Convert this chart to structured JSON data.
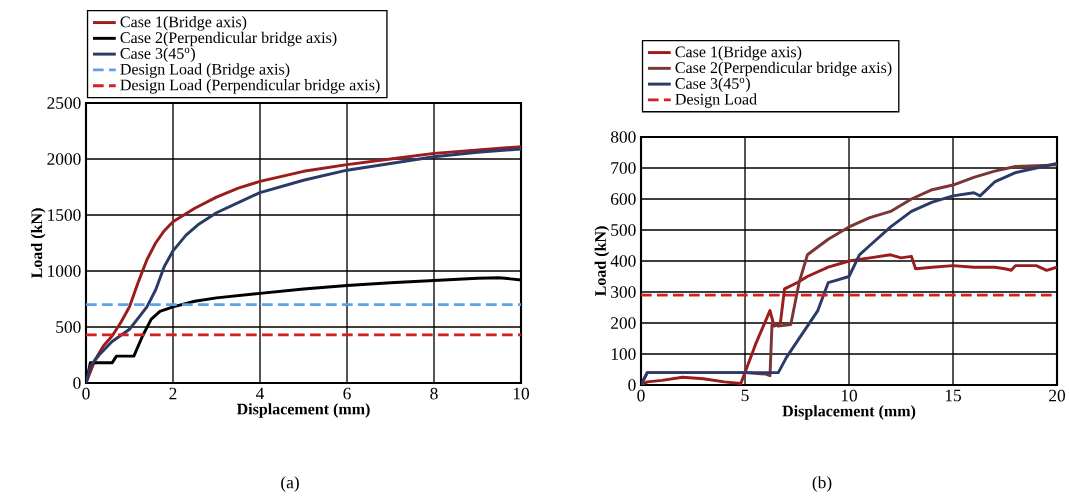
{
  "chart_data": [
    {
      "type": "line",
      "xlabel": "Displacement (mm)",
      "ylabel": "Load (kN)",
      "xlim": [
        0,
        10
      ],
      "ylim": [
        0,
        2500
      ],
      "xticks": [
        0,
        2,
        4,
        6,
        8,
        10
      ],
      "yticks": [
        0,
        500,
        1000,
        1500,
        2000,
        2500
      ],
      "grid": true,
      "legend": "top left",
      "annotations": [
        "(a)"
      ],
      "series": [
        {
          "name": "Case 1(Bridge axis)",
          "color": "#9b1c1c",
          "x": [
            0,
            0.2,
            0.4,
            0.6,
            0.8,
            1.0,
            1.2,
            1.4,
            1.6,
            1.8,
            2.0,
            2.5,
            3,
            3.5,
            4,
            5,
            6,
            7,
            8,
            9,
            10
          ],
          "values": [
            0,
            200,
            330,
            420,
            540,
            680,
            900,
            1100,
            1250,
            1360,
            1440,
            1560,
            1660,
            1740,
            1800,
            1890,
            1950,
            2000,
            2050,
            2080,
            2110
          ]
        },
        {
          "name": "Case 2(Perpendicular bridge axis)",
          "color": "#000000",
          "x": [
            0,
            0.1,
            0.6,
            0.7,
            1.1,
            1.3,
            1.5,
            1.7,
            2,
            2.5,
            3,
            4,
            5,
            6,
            7,
            8,
            9,
            9.5,
            10
          ],
          "values": [
            0,
            180,
            180,
            240,
            240,
            420,
            570,
            640,
            680,
            730,
            760,
            800,
            840,
            870,
            895,
            915,
            935,
            940,
            920
          ]
        },
        {
          "name": "Case 3(45$^{o}$)",
          "color": "#2b3a67",
          "x": [
            0,
            0.1,
            0.3,
            0.6,
            1.0,
            1.2,
            1.4,
            1.6,
            1.8,
            2.0,
            2.3,
            2.6,
            3,
            3.5,
            4,
            5,
            6,
            7,
            8,
            9,
            10
          ],
          "values": [
            0,
            150,
            250,
            370,
            480,
            580,
            680,
            830,
            1040,
            1180,
            1320,
            1420,
            1520,
            1610,
            1700,
            1810,
            1900,
            1960,
            2020,
            2060,
            2090
          ]
        },
        {
          "name": "Design Load (Bridge axis)",
          "color": "#5fa0e8",
          "line_style": "dashed",
          "x": [
            0,
            10
          ],
          "values": [
            700,
            700
          ]
        },
        {
          "name": "Design Load (Perpendicular bridge axis)",
          "color": "#d42020",
          "line_style": "dashed",
          "x": [
            0,
            10
          ],
          "values": [
            430,
            430
          ]
        }
      ]
    },
    {
      "type": "line",
      "xlabel": "Displacement (mm)",
      "ylabel": "Load (kN)",
      "xlim": [
        0,
        20
      ],
      "ylim": [
        0,
        800
      ],
      "xticks": [
        0,
        5,
        10,
        15,
        20
      ],
      "yticks": [
        0,
        100,
        200,
        300,
        400,
        500,
        600,
        700,
        800
      ],
      "grid": true,
      "legend": "top left",
      "annotations": [
        "(b)"
      ],
      "series": [
        {
          "name": "Case 1(Bridge axis)",
          "color": "#9b1c1c",
          "x": [
            0,
            0.3,
            1,
            2,
            3,
            4,
            4.8,
            5,
            5.5,
            6.2,
            6.4,
            6.7,
            6.9,
            7.5,
            8,
            9,
            10,
            11,
            12,
            12.5,
            13,
            13.2,
            14,
            15,
            16,
            17,
            17.5,
            17.8,
            18,
            19,
            19.5,
            20
          ],
          "values": [
            0,
            10,
            15,
            25,
            20,
            10,
            5,
            40,
            130,
            240,
            190,
            200,
            310,
            330,
            350,
            380,
            400,
            410,
            420,
            410,
            415,
            375,
            380,
            385,
            380,
            380,
            375,
            370,
            385,
            385,
            370,
            380
          ]
        },
        {
          "name": "Case 2(Perpendicular bridge axis)",
          "color": "#7b3535",
          "x": [
            0,
            0.3,
            5,
            6,
            6.2,
            6.3,
            6.6,
            7.2,
            7.6,
            8,
            9,
            10,
            11,
            12,
            13,
            14,
            15,
            16,
            17,
            18,
            20
          ],
          "values": [
            0,
            40,
            40,
            35,
            30,
            200,
            190,
            195,
            330,
            420,
            470,
            510,
            540,
            560,
            600,
            630,
            645,
            670,
            690,
            705,
            710
          ]
        },
        {
          "name": "Case 3(45$^{o}$)",
          "color": "#2b3a67",
          "x": [
            0,
            0.3,
            6,
            6.6,
            7,
            8,
            8.5,
            9,
            9.5,
            10,
            10.5,
            11,
            12,
            13,
            14,
            15,
            16,
            16.3,
            17,
            18,
            19,
            20
          ],
          "values": [
            0,
            40,
            40,
            40,
            90,
            190,
            240,
            330,
            340,
            350,
            420,
            450,
            510,
            560,
            590,
            610,
            620,
            610,
            655,
            685,
            700,
            715
          ]
        },
        {
          "name": "Design Load",
          "color": "#d42020",
          "line_style": "dashed",
          "x": [
            0,
            20
          ],
          "values": [
            290,
            290
          ]
        }
      ]
    }
  ]
}
